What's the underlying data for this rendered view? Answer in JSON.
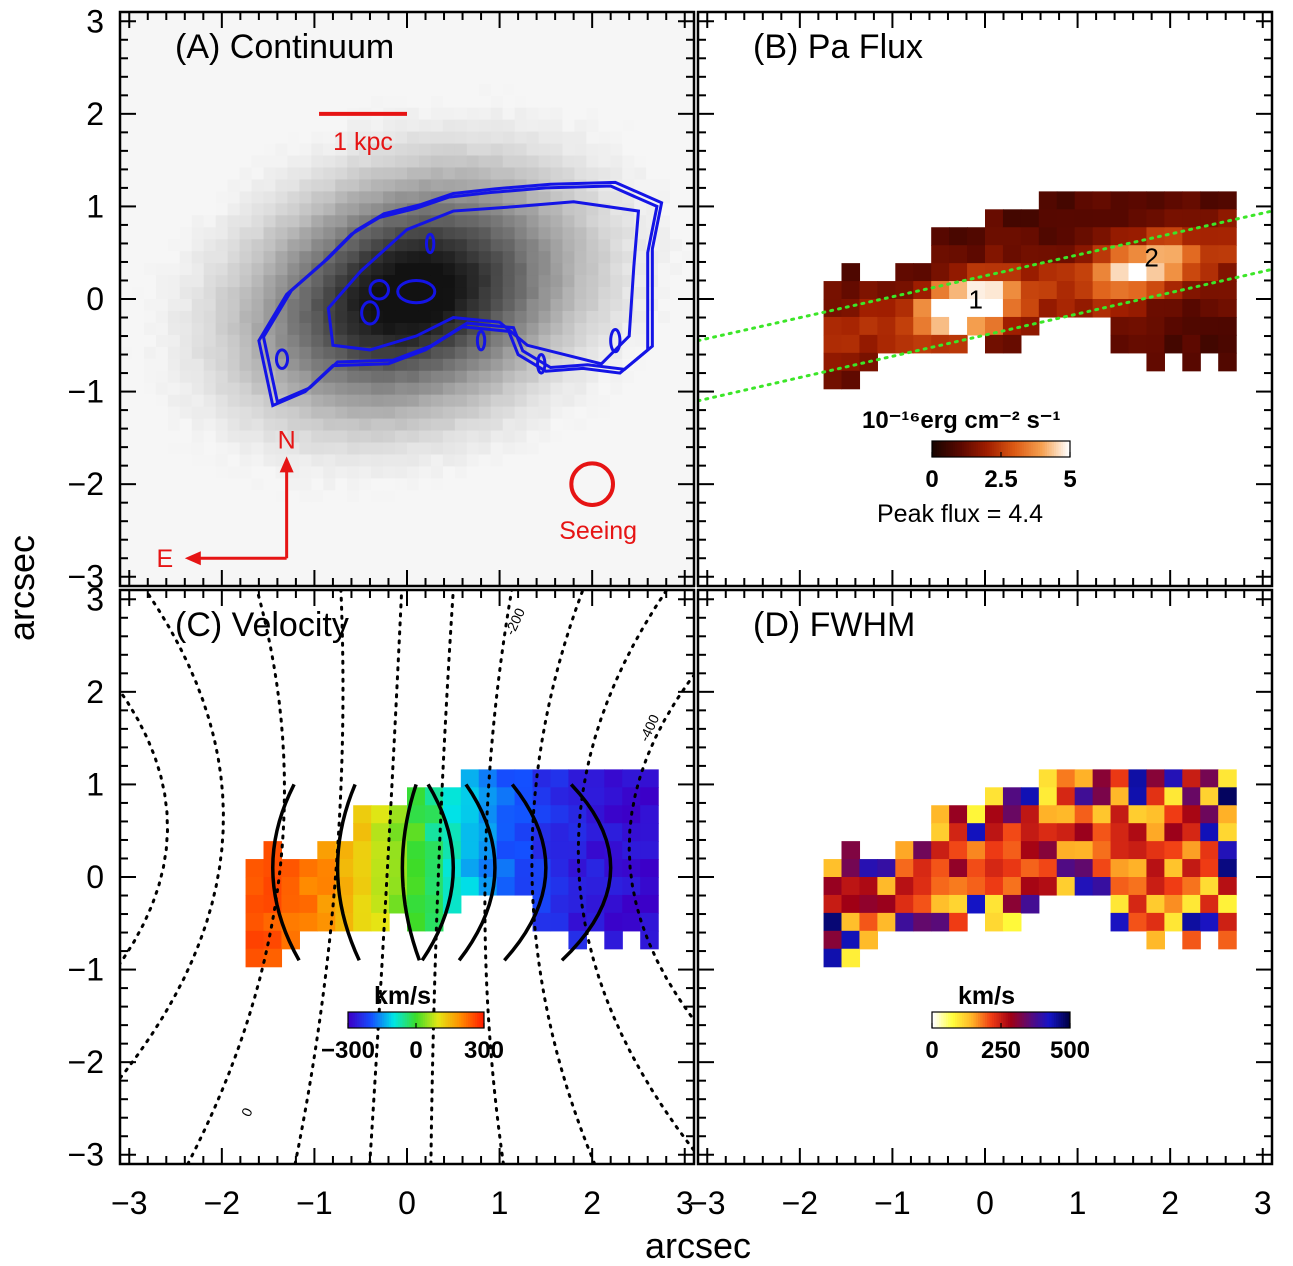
{
  "figure": {
    "xlabel": "arcsec",
    "ylabel": "arcsec",
    "xlim": [
      -3.1,
      3.1
    ],
    "ylim": [
      -3.1,
      3.1
    ],
    "ticks": [
      -3,
      -2,
      -1,
      0,
      1,
      2,
      3
    ],
    "tick_labels": [
      "−3",
      "−2",
      "−1",
      "0",
      "1",
      "2",
      "3"
    ]
  },
  "chart_data": [
    {
      "type": "heatmap",
      "panel": "A",
      "title": "(A) Continuum",
      "colormap": "grayscale",
      "peak": [
        0.05,
        0.05
      ],
      "contour_color": "#1414e6",
      "annotation_color": "#e61414",
      "scale_bar": {
        "label": "1 kpc",
        "x": [
          -0.95,
          0.0
        ],
        "y": 2.0
      },
      "compass": {
        "north_label": "N",
        "east_label": "E",
        "origin": [
          -1.3,
          -2.8
        ],
        "length": 1.1
      },
      "seeing": {
        "label": "Seeing",
        "center": [
          2.0,
          -2.0
        ],
        "radius": 0.3
      }
    },
    {
      "type": "heatmap",
      "panel": "B",
      "title": "(B) Pa Flux",
      "colorbar": {
        "title": "10⁻¹⁶erg cm⁻² s⁻¹",
        "ticks": [
          "0",
          "2.5",
          "5"
        ],
        "range": [
          0,
          5
        ],
        "colors": [
          "#1a0500",
          "#5a0800",
          "#a01e00",
          "#dc5a14",
          "#f5a050",
          "#ffffff"
        ]
      },
      "peak_flux_text": "Peak flux = 4.4",
      "peak_flux": 4.4,
      "region_labels": [
        {
          "label": "1",
          "x": -0.1,
          "y": -0.1
        },
        {
          "label": "2",
          "x": 1.8,
          "y": 0.35
        }
      ],
      "slit_lines": [
        {
          "x": [
            -3.1,
            3.1
          ],
          "y": [
            -0.45,
            0.95
          ]
        },
        {
          "x": [
            -3.1,
            3.1
          ],
          "y": [
            -1.1,
            0.32
          ]
        }
      ],
      "slit_color": "#3ce628"
    },
    {
      "type": "heatmap",
      "panel": "C",
      "title": "(C) Velocity",
      "colorbar": {
        "title": "km/s",
        "ticks": [
          "−300",
          "0",
          "300"
        ],
        "range": [
          -300,
          300
        ],
        "colors": [
          "#3c00c8",
          "#1450ff",
          "#00e6e6",
          "#3cdc28",
          "#e6e614",
          "#ff8c00",
          "#ff1e00"
        ]
      },
      "model_contour_labels": [
        "-400",
        "-200",
        "0"
      ]
    },
    {
      "type": "heatmap",
      "panel": "D",
      "title": "(D) FWHM",
      "colorbar": {
        "title": "km/s",
        "ticks": [
          "0",
          "250",
          "500"
        ],
        "range": [
          0,
          500
        ],
        "colors": [
          "#ffffff",
          "#ffff3c",
          "#ffb428",
          "#f03c14",
          "#a00014",
          "#5a0a78",
          "#1414c8",
          "#000046"
        ]
      }
    }
  ]
}
